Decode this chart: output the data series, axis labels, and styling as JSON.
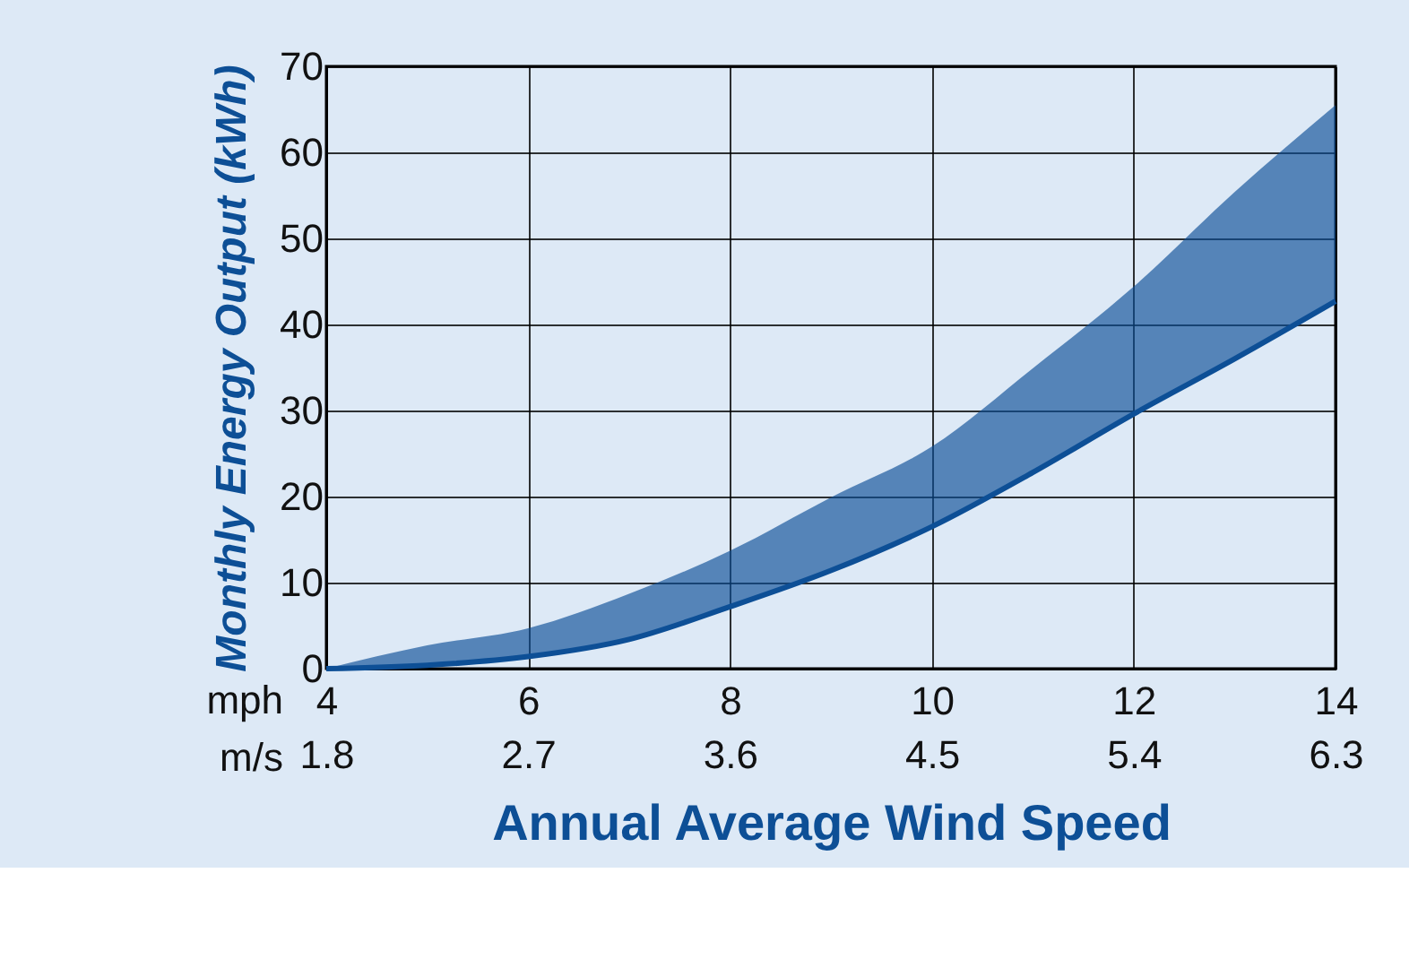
{
  "chart_data": {
    "type": "line",
    "xlabel": "Annual Average Wind Speed",
    "ylabel": "Monthly Energy Output (kWh)",
    "annotations": [
      "mph",
      "m/s"
    ],
    "x": [
      4,
      5,
      6,
      7,
      8,
      9,
      10,
      11,
      12,
      13,
      14
    ],
    "series": [
      {
        "color": "#0d4f96",
        "values": [
          0,
          0.4,
          1.4,
          3.4,
          7.2,
          11.4,
          16.5,
          22.8,
          29.6,
          36,
          42.7
        ],
        "lower": [
          0,
          0.4,
          1.4,
          3.4,
          7.2,
          11.4,
          16.5,
          22.8,
          29.6,
          36,
          42.7
        ],
        "upper": [
          0,
          2.7,
          4.7,
          8.7,
          13.7,
          19.9,
          25.8,
          34.9,
          44.4,
          55.4,
          65.5
        ]
      }
    ],
    "xlim": [
      4,
      14
    ],
    "xticks": [
      4,
      6,
      8,
      10,
      12,
      14
    ],
    "x2lim": [
      1.8,
      6.3
    ],
    "x2ticks": [
      1.8,
      2.7,
      3.6,
      4.5,
      5.4,
      6.3
    ],
    "ylim": [
      0,
      70
    ],
    "yticks": [
      0,
      10,
      20,
      30,
      40,
      50,
      60,
      70
    ],
    "grid": true
  }
}
